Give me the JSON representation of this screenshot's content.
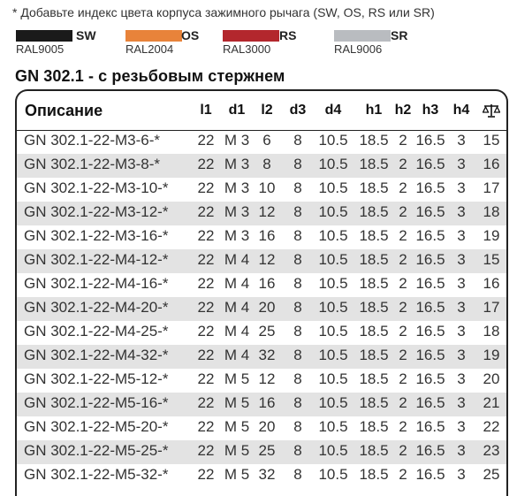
{
  "note": "* Добавьте индекс цвета корпуса зажимного рычага (SW, OS, RS или SR)",
  "swatches": [
    {
      "code": "SW",
      "ral": "RAL9005",
      "color": "#1a1a1a"
    },
    {
      "code": "OS",
      "ral": "RAL2004",
      "color": "#e8833a"
    },
    {
      "code": "RS",
      "ral": "RAL3000",
      "color": "#b3272d"
    },
    {
      "code": "SR",
      "ral": "RAL9006",
      "color": "#b9bcc0"
    }
  ],
  "title": "GN 302.1 - с резьбовым стержнем",
  "table": {
    "headers": [
      "Описание",
      "l1",
      "d1",
      "l2",
      "d3",
      "d4",
      "h1",
      "h2",
      "h3",
      "h4"
    ],
    "weight_icon": "scale-icon",
    "rows": [
      [
        "GN 302.1-22-M3-6-*",
        "22",
        "M 3",
        "6",
        "8",
        "10.5",
        "18.5",
        "2",
        "16.5",
        "3",
        "15"
      ],
      [
        "GN 302.1-22-M3-8-*",
        "22",
        "M 3",
        "8",
        "8",
        "10.5",
        "18.5",
        "2",
        "16.5",
        "3",
        "16"
      ],
      [
        "GN 302.1-22-M3-10-*",
        "22",
        "M 3",
        "10",
        "8",
        "10.5",
        "18.5",
        "2",
        "16.5",
        "3",
        "17"
      ],
      [
        "GN 302.1-22-M3-12-*",
        "22",
        "M 3",
        "12",
        "8",
        "10.5",
        "18.5",
        "2",
        "16.5",
        "3",
        "18"
      ],
      [
        "GN 302.1-22-M3-16-*",
        "22",
        "M 3",
        "16",
        "8",
        "10.5",
        "18.5",
        "2",
        "16.5",
        "3",
        "19"
      ],
      [
        "GN 302.1-22-M4-12-*",
        "22",
        "M 4",
        "12",
        "8",
        "10.5",
        "18.5",
        "2",
        "16.5",
        "3",
        "15"
      ],
      [
        "GN 302.1-22-M4-16-*",
        "22",
        "M 4",
        "16",
        "8",
        "10.5",
        "18.5",
        "2",
        "16.5",
        "3",
        "16"
      ],
      [
        "GN 302.1-22-M4-20-*",
        "22",
        "M 4",
        "20",
        "8",
        "10.5",
        "18.5",
        "2",
        "16.5",
        "3",
        "17"
      ],
      [
        "GN 302.1-22-M4-25-*",
        "22",
        "M 4",
        "25",
        "8",
        "10.5",
        "18.5",
        "2",
        "16.5",
        "3",
        "18"
      ],
      [
        "GN 302.1-22-M4-32-*",
        "22",
        "M 4",
        "32",
        "8",
        "10.5",
        "18.5",
        "2",
        "16.5",
        "3",
        "19"
      ],
      [
        "GN 302.1-22-M5-12-*",
        "22",
        "M 5",
        "12",
        "8",
        "10.5",
        "18.5",
        "2",
        "16.5",
        "3",
        "20"
      ],
      [
        "GN 302.1-22-M5-16-*",
        "22",
        "M 5",
        "16",
        "8",
        "10.5",
        "18.5",
        "2",
        "16.5",
        "3",
        "21"
      ],
      [
        "GN 302.1-22-M5-20-*",
        "22",
        "M 5",
        "20",
        "8",
        "10.5",
        "18.5",
        "2",
        "16.5",
        "3",
        "22"
      ],
      [
        "GN 302.1-22-M5-25-*",
        "22",
        "M 5",
        "25",
        "8",
        "10.5",
        "18.5",
        "2",
        "16.5",
        "3",
        "23"
      ],
      [
        "GN 302.1-22-M5-32-*",
        "22",
        "M 5",
        "32",
        "8",
        "10.5",
        "18.5",
        "2",
        "16.5",
        "3",
        "25"
      ]
    ]
  }
}
